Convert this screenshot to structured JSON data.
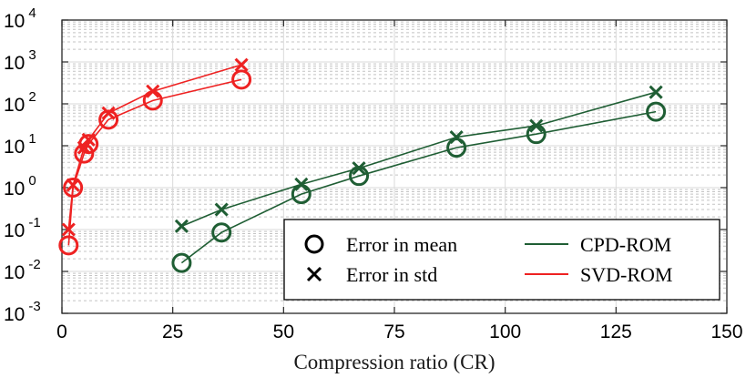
{
  "chart_data": {
    "type": "line",
    "title": "",
    "xlabel": "Compression ratio (CR)",
    "ylabel": "",
    "xlim": [
      0,
      150
    ],
    "ylim_exp": [
      -3,
      4
    ],
    "yscale": "log",
    "x_ticks": [
      0,
      25,
      50,
      75,
      100,
      125,
      150
    ],
    "y_tick_exponents": [
      -3,
      -2,
      -1,
      0,
      1,
      2,
      3,
      4
    ],
    "y_tick_base": "10",
    "grid": true,
    "legend_position": "bottom-right",
    "legend": {
      "markers": [
        {
          "label": "Error in mean",
          "marker": "circle"
        },
        {
          "label": "Error in std",
          "marker": "cross"
        }
      ],
      "lines": [
        {
          "label": "CPD-ROM",
          "color": "#1f5e34"
        },
        {
          "label": "SVD-ROM",
          "color": "#ee2222"
        }
      ]
    },
    "series": [
      {
        "method": "CPD-ROM",
        "metric": "mean",
        "marker": "circle",
        "color": "#1f5e34",
        "x": [
          27,
          36,
          54,
          67,
          89,
          107,
          134
        ],
        "y": [
          0.016,
          0.085,
          0.7,
          1.9,
          9,
          19,
          65
        ]
      },
      {
        "method": "CPD-ROM",
        "metric": "std",
        "marker": "cross",
        "color": "#1f5e34",
        "x": [
          27,
          36,
          54,
          67,
          89,
          107,
          134
        ],
        "y": [
          0.12,
          0.3,
          1.2,
          2.9,
          16,
          30,
          190
        ]
      },
      {
        "method": "SVD-ROM",
        "metric": "mean",
        "marker": "circle",
        "color": "#ee2222",
        "x": [
          1.5,
          2.5,
          5,
          6,
          10.5,
          20.5,
          40.5
        ],
        "y": [
          0.042,
          1.0,
          6.5,
          11,
          42,
          120,
          380
        ]
      },
      {
        "method": "SVD-ROM",
        "metric": "std",
        "marker": "cross",
        "color": "#ee2222",
        "x": [
          1.5,
          2.5,
          5,
          6,
          10.5,
          20.5,
          40.5
        ],
        "y": [
          0.1,
          1.15,
          9,
          14,
          60,
          200,
          850
        ]
      }
    ]
  }
}
